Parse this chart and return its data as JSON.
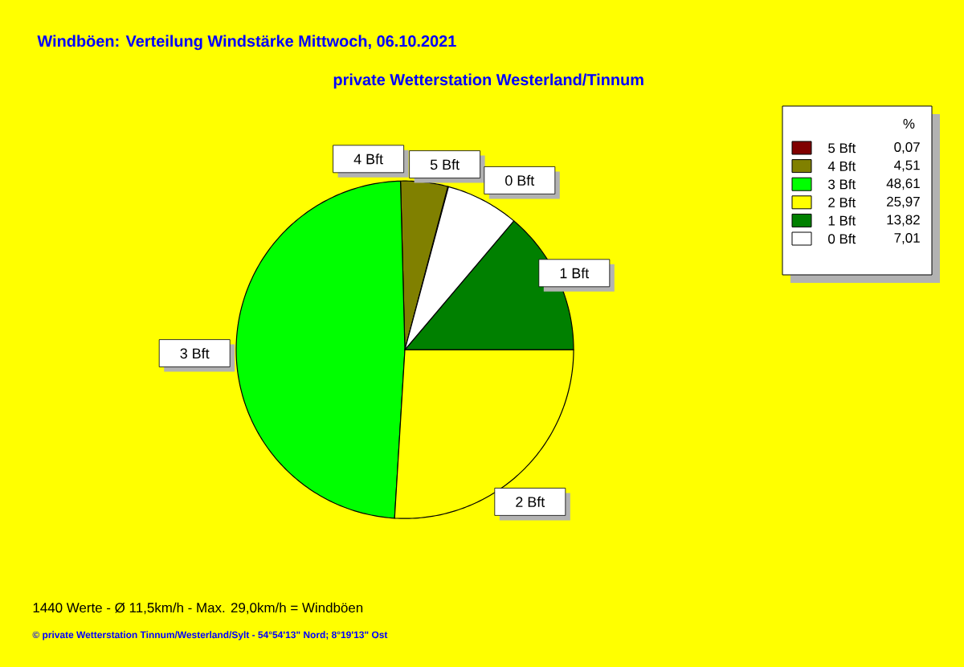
{
  "chart_data": {
    "type": "pie",
    "title": "Windböen: Verteilung Windstärke  Mittwoch, 06.10.2021",
    "subtitle": "private Wetterstation Westerland/Tinnum",
    "legend_title": "%",
    "categories": [
      "5 Bft",
      "4 Bft",
      "3 Bft",
      "2 Bft",
      "1 Bft",
      "0 Bft"
    ],
    "values": [
      0.07,
      4.51,
      48.61,
      25.97,
      13.82,
      7.01
    ],
    "value_labels": [
      "0,07",
      "4,51",
      "48,61",
      "25,97",
      "13,82",
      "7,01"
    ],
    "colors": [
      "#800000",
      "#808000",
      "#00ff00",
      "#ffff00",
      "#008000",
      "#ffffff"
    ],
    "legend": "top right",
    "annotations": [
      "1440 Werte   -   Ø 11,5km/h  -  Max. 29,0km/h = Windböen",
      "© private Wetterstation Tinnum/Westerland/Sylt  -  54°54'13\" Nord; 8°19'13\" Ost"
    ]
  }
}
